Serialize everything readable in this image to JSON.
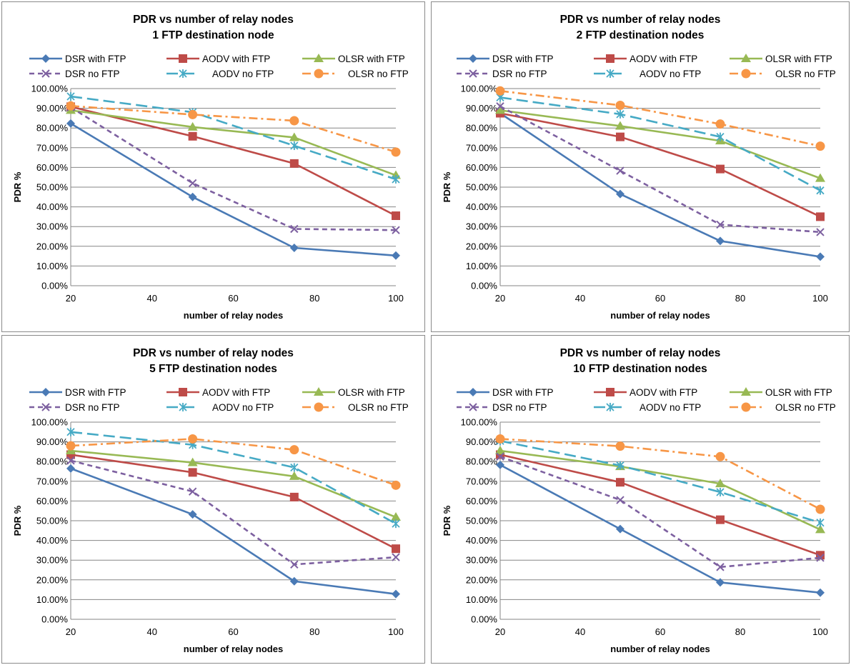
{
  "chart_data": [
    {
      "type": "line",
      "title": "PDR vs number of relay nodes",
      "subtitle": "1 FTP destination node",
      "xlabel": "number of relay nodes",
      "ylabel": "PDR %",
      "x": [
        20,
        50,
        75,
        100
      ],
      "xticks": [
        "20",
        "40",
        "60",
        "80",
        "100"
      ],
      "yticks": [
        "0.00%",
        "10.00%",
        "20.00%",
        "30.00%",
        "40.00%",
        "50.00%",
        "60.00%",
        "70.00%",
        "80.00%",
        "90.00%",
        "100.00%"
      ],
      "xlim": [
        20,
        100
      ],
      "ylim": [
        0,
        100
      ],
      "grid": true,
      "legend": "top",
      "series": [
        {
          "name": "DSR with FTP",
          "values": [
            82.3,
            45.0,
            19.2,
            15.3
          ],
          "color": "#4a7ab5",
          "marker": "diamond",
          "dash": "solid"
        },
        {
          "name": "AODV with FTP",
          "values": [
            90.8,
            75.8,
            62.0,
            35.5
          ],
          "color": "#be4b48",
          "marker": "square",
          "dash": "solid"
        },
        {
          "name": "OLSR with FTP",
          "values": [
            89.0,
            80.5,
            75.2,
            56.0
          ],
          "color": "#98b954",
          "marker": "triangle",
          "dash": "solid"
        },
        {
          "name": "DSR no FTP",
          "values": [
            90.5,
            52.0,
            28.8,
            28.2
          ],
          "color": "#7d60a0",
          "marker": "x",
          "dash": "dash"
        },
        {
          "name": "AODV no FTP",
          "values": [
            96.0,
            88.0,
            71.0,
            54.0
          ],
          "color": "#46aac5",
          "marker": "star",
          "dash": "longdash"
        },
        {
          "name": "OLSR no FTP",
          "values": [
            91.2,
            86.8,
            83.7,
            67.8
          ],
          "color": "#f79646",
          "marker": "circle",
          "dash": "dashdot"
        }
      ]
    },
    {
      "type": "line",
      "title": "PDR vs number of relay nodes",
      "subtitle": "2 FTP destination nodes",
      "xlabel": "number of relay nodes",
      "ylabel": "PDR %",
      "x": [
        20,
        50,
        75,
        100
      ],
      "xticks": [
        "20",
        "40",
        "60",
        "80",
        "100"
      ],
      "yticks": [
        "0.00%",
        "10.00%",
        "20.00%",
        "30.00%",
        "40.00%",
        "50.00%",
        "60.00%",
        "70.00%",
        "80.00%",
        "90.00%",
        "100.00%"
      ],
      "xlim": [
        20,
        100
      ],
      "ylim": [
        0,
        100
      ],
      "grid": true,
      "legend": "top",
      "series": [
        {
          "name": "DSR with FTP",
          "values": [
            87.5,
            46.5,
            22.7,
            14.7
          ],
          "color": "#4a7ab5",
          "marker": "diamond",
          "dash": "solid"
        },
        {
          "name": "AODV with FTP",
          "values": [
            87.5,
            75.5,
            59.2,
            35.0
          ],
          "color": "#be4b48",
          "marker": "square",
          "dash": "solid"
        },
        {
          "name": "OLSR with FTP",
          "values": [
            89.0,
            81.0,
            73.5,
            54.5
          ],
          "color": "#98b954",
          "marker": "triangle",
          "dash": "solid"
        },
        {
          "name": "DSR no FTP",
          "values": [
            91.0,
            58.3,
            31.0,
            27.2
          ],
          "color": "#7d60a0",
          "marker": "x",
          "dash": "dash"
        },
        {
          "name": "AODV no FTP",
          "values": [
            95.5,
            87.0,
            75.5,
            48.3
          ],
          "color": "#46aac5",
          "marker": "star",
          "dash": "longdash"
        },
        {
          "name": "OLSR no FTP",
          "values": [
            98.8,
            91.5,
            82.0,
            70.8
          ],
          "color": "#f79646",
          "marker": "circle",
          "dash": "dashdot"
        }
      ]
    },
    {
      "type": "line",
      "title": "PDR vs number of relay nodes",
      "subtitle": "5 FTP destination nodes",
      "xlabel": "number of relay nodes",
      "ylabel": "PDR %",
      "x": [
        20,
        50,
        75,
        100
      ],
      "xticks": [
        "20",
        "40",
        "60",
        "80",
        "100"
      ],
      "yticks": [
        "0.00%",
        "10.00%",
        "20.00%",
        "30.00%",
        "40.00%",
        "50.00%",
        "60.00%",
        "70.00%",
        "80.00%",
        "90.00%",
        "100.00%"
      ],
      "xlim": [
        20,
        100
      ],
      "ylim": [
        0,
        100
      ],
      "grid": true,
      "legend": "top",
      "series": [
        {
          "name": "DSR with FTP",
          "values": [
            76.5,
            53.2,
            19.3,
            12.8
          ],
          "color": "#4a7ab5",
          "marker": "diamond",
          "dash": "solid"
        },
        {
          "name": "AODV with FTP",
          "values": [
            83.5,
            74.5,
            62.0,
            35.8
          ],
          "color": "#be4b48",
          "marker": "square",
          "dash": "solid"
        },
        {
          "name": "OLSR with FTP",
          "values": [
            85.5,
            79.5,
            72.5,
            51.8
          ],
          "color": "#98b954",
          "marker": "triangle",
          "dash": "solid"
        },
        {
          "name": "DSR no FTP",
          "values": [
            80.5,
            64.8,
            27.8,
            31.5
          ],
          "color": "#7d60a0",
          "marker": "x",
          "dash": "dash"
        },
        {
          "name": "AODV no FTP",
          "values": [
            95.0,
            88.5,
            77.0,
            48.5
          ],
          "color": "#46aac5",
          "marker": "star",
          "dash": "longdash"
        },
        {
          "name": "OLSR no FTP",
          "values": [
            88.0,
            91.5,
            86.0,
            68.0
          ],
          "color": "#f79646",
          "marker": "circle",
          "dash": "dashdot"
        }
      ]
    },
    {
      "type": "line",
      "title": "PDR vs number of relay nodes",
      "subtitle": "10 FTP destination nodes",
      "xlabel": "number of relay nodes",
      "ylabel": "PDR %",
      "x": [
        20,
        50,
        75,
        100
      ],
      "xticks": [
        "20",
        "40",
        "60",
        "80",
        "100"
      ],
      "yticks": [
        "0.00%",
        "10.00%",
        "20.00%",
        "30.00%",
        "40.00%",
        "50.00%",
        "60.00%",
        "70.00%",
        "80.00%",
        "90.00%",
        "100.00%"
      ],
      "xlim": [
        20,
        100
      ],
      "ylim": [
        0,
        100
      ],
      "grid": true,
      "legend": "top",
      "series": [
        {
          "name": "DSR with FTP",
          "values": [
            78.3,
            45.8,
            18.7,
            13.5
          ],
          "color": "#4a7ab5",
          "marker": "diamond",
          "dash": "solid"
        },
        {
          "name": "AODV with FTP",
          "values": [
            83.5,
            69.5,
            50.5,
            32.5
          ],
          "color": "#be4b48",
          "marker": "square",
          "dash": "solid"
        },
        {
          "name": "OLSR with FTP",
          "values": [
            85.5,
            77.5,
            68.8,
            45.5
          ],
          "color": "#98b954",
          "marker": "triangle",
          "dash": "solid"
        },
        {
          "name": "DSR no FTP",
          "values": [
            82.5,
            60.5,
            26.5,
            31.2
          ],
          "color": "#7d60a0",
          "marker": "x",
          "dash": "dash"
        },
        {
          "name": "AODV no FTP",
          "values": [
            90.5,
            78.0,
            64.5,
            49.0
          ],
          "color": "#46aac5",
          "marker": "star",
          "dash": "longdash"
        },
        {
          "name": "OLSR no FTP",
          "values": [
            91.5,
            87.8,
            82.5,
            55.8
          ],
          "color": "#f79646",
          "marker": "circle",
          "dash": "dashdot"
        }
      ]
    }
  ]
}
